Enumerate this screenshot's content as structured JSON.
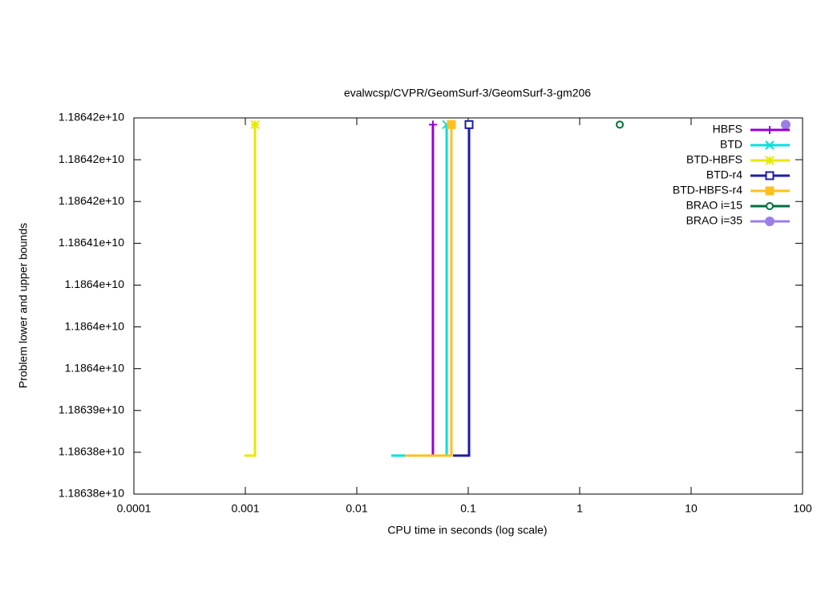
{
  "chart_data": {
    "type": "line",
    "title": "evalwcsp/CVPR/GeomSurf-3/GeomSurf-3-gm206",
    "x_label": "CPU time in seconds (log scale)",
    "y_label": "Problem lower and upper bounds",
    "xscale": "log",
    "xlim": [
      0.0001,
      100
    ],
    "xticks": [
      0.0001,
      0.001,
      0.01,
      0.1,
      1,
      10,
      100
    ],
    "ylim": [
      11863775000,
      11864225000
    ],
    "yticks": [
      {
        "value": 11863775000,
        "label": "1.18638e+10"
      },
      {
        "value": 11863825000,
        "label": "1.18638e+10"
      },
      {
        "value": 11863875000,
        "label": "1.18639e+10"
      },
      {
        "value": 11863925000,
        "label": "1.1864e+10"
      },
      {
        "value": 11863975000,
        "label": "1.1864e+10"
      },
      {
        "value": 11864025000,
        "label": "1.1864e+10"
      },
      {
        "value": 11864075000,
        "label": "1.18641e+10"
      },
      {
        "value": 11864125000,
        "label": "1.18642e+10"
      },
      {
        "value": 11864175000,
        "label": "1.18642e+10"
      },
      {
        "value": 11864225000,
        "label": "1.18642e+10"
      }
    ],
    "legend": "top-right",
    "series": [
      {
        "name": "HBFS",
        "color": "#9400d3",
        "marker": "plus",
        "x": [
          0.027,
          0.0482,
          0.0482
        ],
        "values": [
          11863821000,
          11863821000,
          11864217000
        ]
      },
      {
        "name": "BTD",
        "color": "#00e0e0",
        "marker": "cross",
        "x": [
          0.0204,
          0.064,
          0.064
        ],
        "values": [
          11863821000,
          11863821000,
          11864217000
        ]
      },
      {
        "name": "BTD-HBFS",
        "color": "#e8e800",
        "marker": "star",
        "x": [
          0.00098,
          0.00122,
          0.00122
        ],
        "values": [
          11863821000,
          11863821000,
          11864217000
        ]
      },
      {
        "name": "BTD-r4",
        "color": "#1c1ca8",
        "marker": "square",
        "x": [
          0.073,
          0.1017,
          0.1017
        ],
        "values": [
          11863821000,
          11863821000,
          11864217000
        ]
      },
      {
        "name": "BTD-HBFS-r4",
        "color": "#ffc020",
        "marker": "square-filled",
        "x": [
          0.027,
          0.0706,
          0.0706
        ],
        "values": [
          11863821000,
          11863821000,
          11864217000
        ]
      },
      {
        "name": "BRAO i=15",
        "color": "#007040",
        "marker": "circle",
        "x": [
          2.29
        ],
        "values": [
          11864217000
        ]
      },
      {
        "name": "BRAO i=35",
        "color": "#9b7fe8",
        "marker": "circle-filled",
        "x": [
          70.6
        ],
        "values": [
          11864217000
        ]
      }
    ]
  }
}
